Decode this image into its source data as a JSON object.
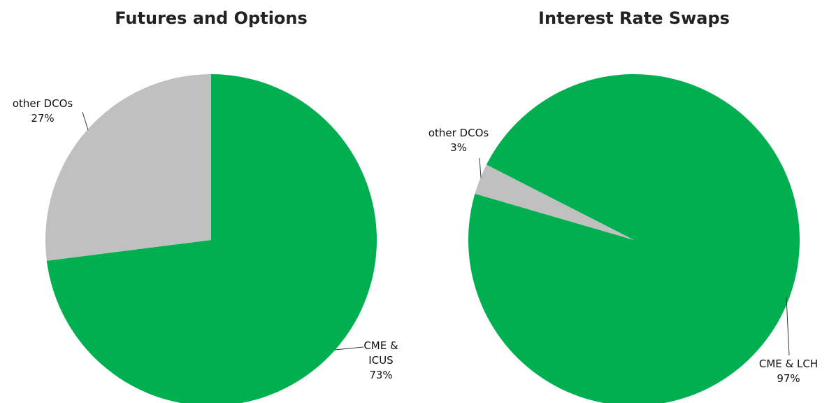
{
  "chart_data": [
    {
      "type": "pie",
      "title": "Futures and Options",
      "categories": [
        "CME & ICUS",
        "other DCOs"
      ],
      "values": [
        73,
        27
      ],
      "value_labels": [
        "73%",
        "27%"
      ],
      "colors": [
        "#00b050",
        "#c0c0c0"
      ],
      "start_angle": 0
    },
    {
      "type": "pie",
      "title": "Interest Rate Swaps",
      "categories": [
        "CME & LCH",
        "other DCOs"
      ],
      "values": [
        97,
        3
      ],
      "value_labels": [
        "97%",
        "3%"
      ],
      "colors": [
        "#00b050",
        "#c0c0c0"
      ],
      "start_angle": 297
    }
  ]
}
